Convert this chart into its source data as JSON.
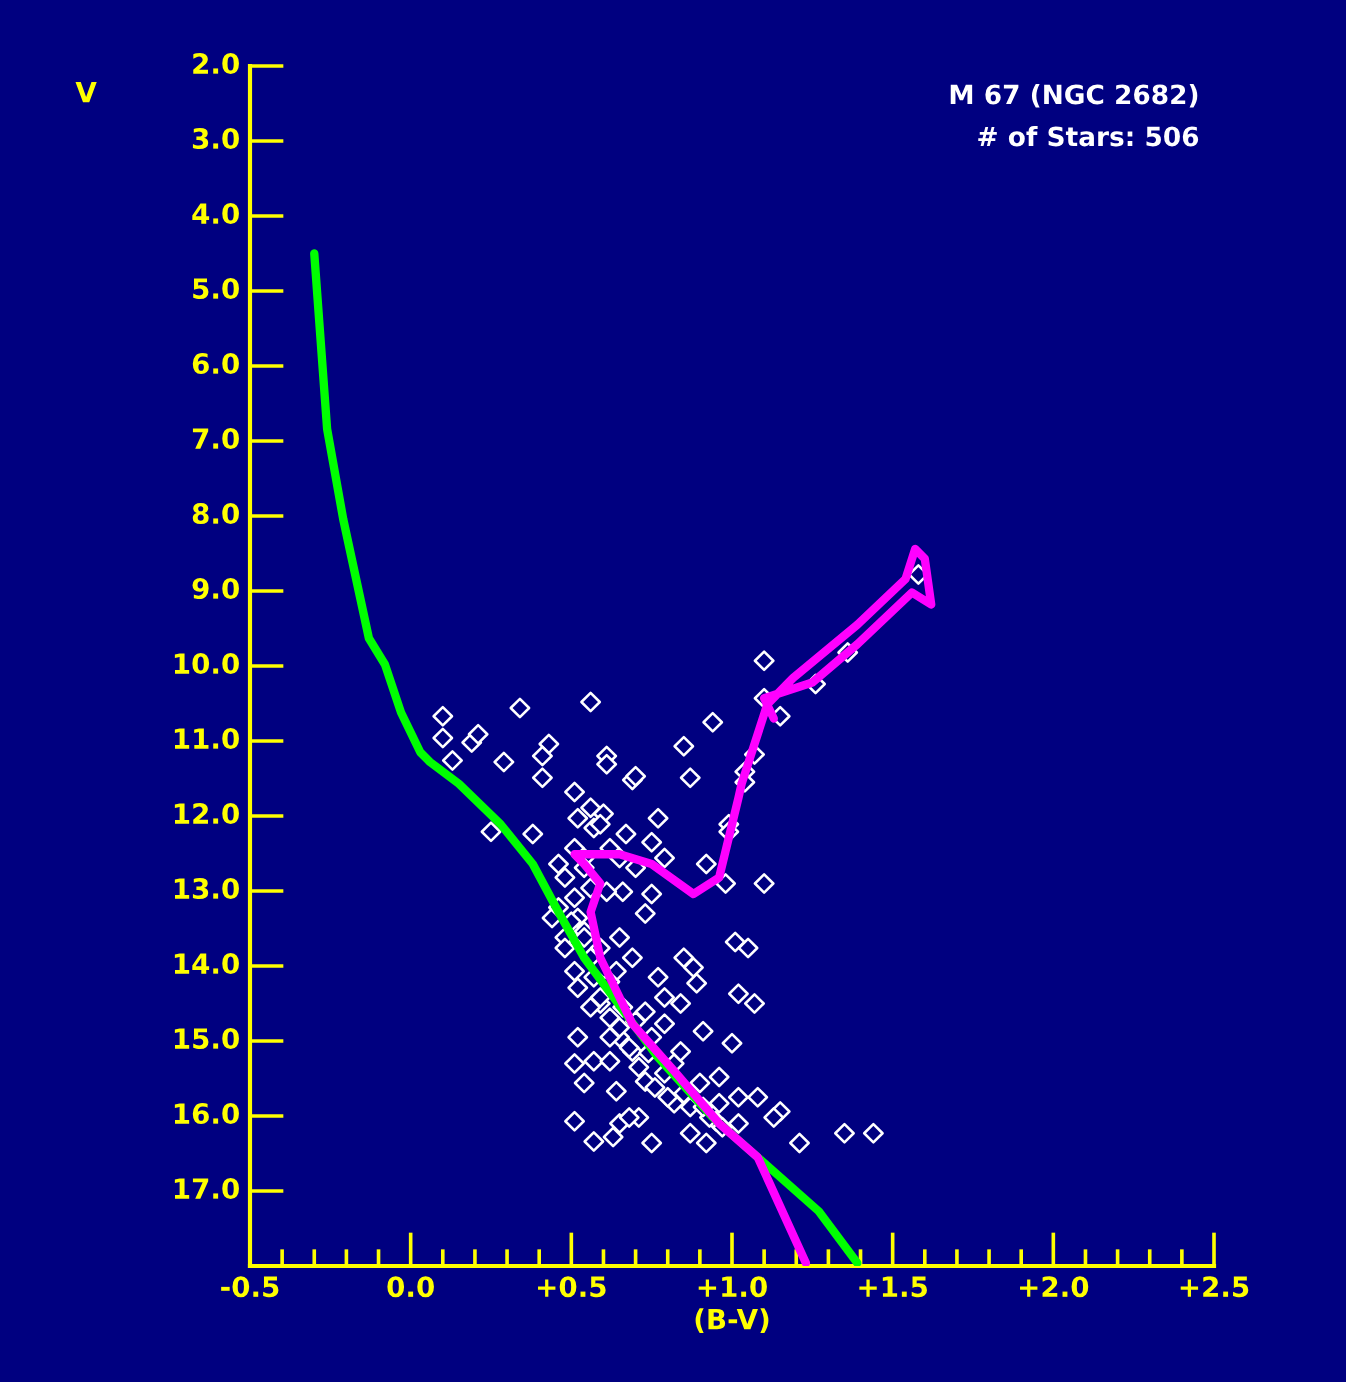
{
  "chart_data": {
    "type": "scatter",
    "xlabel": "(B-V)",
    "ylabel": "V",
    "annotations": [
      "M 67 (NGC 2682)",
      "# of Stars: 506"
    ],
    "xlim": [
      -0.5,
      2.5
    ],
    "ylim": [
      18.0,
      2.0
    ],
    "xticks": [
      {
        "value": -0.5,
        "label": "-0.5"
      },
      {
        "value": 0,
        "label": "0.0"
      },
      {
        "value": 0.5,
        "label": "+0.5"
      },
      {
        "value": 1.0,
        "label": "+1.0"
      },
      {
        "value": 1.5,
        "label": "+1.5"
      },
      {
        "value": 2.0,
        "label": "+2.0"
      },
      {
        "value": 2.5,
        "label": "+2.5"
      },
      {
        "value": -0.4,
        "label": null
      },
      {
        "value": -0.3,
        "label": null
      },
      {
        "value": -0.2,
        "label": null
      },
      {
        "value": -0.1,
        "label": null
      },
      {
        "value": 0.1,
        "label": null
      },
      {
        "value": 0.2,
        "label": null
      },
      {
        "value": 0.3,
        "label": null
      },
      {
        "value": 0.4,
        "label": null
      },
      {
        "value": 0.6,
        "label": null
      },
      {
        "value": 0.7,
        "label": null
      },
      {
        "value": 0.8,
        "label": null
      },
      {
        "value": 0.9,
        "label": null
      },
      {
        "value": 1.1,
        "label": null
      },
      {
        "value": 1.2,
        "label": null
      },
      {
        "value": 1.3,
        "label": null
      },
      {
        "value": 1.4,
        "label": null
      },
      {
        "value": 1.6,
        "label": null
      },
      {
        "value": 1.7,
        "label": null
      },
      {
        "value": 1.8,
        "label": null
      },
      {
        "value": 1.9,
        "label": null
      },
      {
        "value": 2.1,
        "label": null
      },
      {
        "value": 2.2,
        "label": null
      },
      {
        "value": 2.3,
        "label": null
      },
      {
        "value": 2.4,
        "label": null
      }
    ],
    "yticks": [
      {
        "value": 2,
        "label": "2.0"
      },
      {
        "value": 3,
        "label": "3.0"
      },
      {
        "value": 4,
        "label": "4.0"
      },
      {
        "value": 5,
        "label": "5.0"
      },
      {
        "value": 6,
        "label": "6.0"
      },
      {
        "value": 7,
        "label": "7.0"
      },
      {
        "value": 8,
        "label": "8.0"
      },
      {
        "value": 9,
        "label": "9.0"
      },
      {
        "value": 10,
        "label": "10.0"
      },
      {
        "value": 11,
        "label": "11.0"
      },
      {
        "value": 12,
        "label": "12.0"
      },
      {
        "value": 13,
        "label": "13.0"
      },
      {
        "value": 14,
        "label": "14.0"
      },
      {
        "value": 15,
        "label": "15.0"
      },
      {
        "value": 16,
        "label": "16.0"
      },
      {
        "value": 17,
        "label": "17.0"
      }
    ],
    "grid": false,
    "legend": false,
    "series": [
      {
        "color": "#ffffff",
        "marker": "diamond",
        "x": [
          0.1,
          0.34,
          0.56,
          0.1,
          0.19,
          0.21,
          0.13,
          0.29,
          0.43,
          0.41,
          0.41,
          0.51,
          0.61,
          0.61,
          0.69,
          0.7,
          0.85,
          0.87,
          0.25,
          0.38,
          0.6,
          0.77,
          0.57,
          0.67,
          0.75,
          0.79,
          0.66,
          0.73,
          0.75,
          1.1,
          0.94,
          1.1,
          1.15,
          1.07,
          1.04,
          1.04,
          0.99,
          0.99,
          0.92,
          0.98,
          1.1,
          1.26,
          1.36,
          1.58,
          0.46,
          0.48,
          0.44,
          0.48,
          1.01,
          1.05,
          0.85,
          0.88,
          0.89,
          1.02,
          1.07,
          0.51,
          0.52,
          0.59,
          0.77,
          0.84,
          0.91,
          0.51,
          0.57,
          0.62,
          0.54,
          0.64,
          0.51,
          0.57,
          0.65,
          0.71,
          0.75,
          0.82,
          0.9,
          0.96,
          1.08,
          1.15,
          1.21,
          1.35,
          1.44,
          0.69,
          0.75,
          0.79,
          0.82,
          0.59,
          0.54,
          0.61,
          0.54,
          0.65,
          0.69,
          0.64,
          0.73,
          0.79,
          0.52,
          0.65,
          0.84,
          0.96,
          1.0,
          0.73,
          0.68,
          0.63,
          0.95,
          1.02,
          1.13,
          0.92,
          0.87,
          1.02,
          0.51,
          0.52,
          0.54,
          0.56,
          0.57,
          0.59,
          0.62,
          0.65,
          0.68,
          0.71,
          0.76,
          0.8,
          0.87,
          0.93,
          0.54,
          0.56,
          0.5,
          0.59,
          0.62,
          0.66,
          0.7,
          0.74,
          0.79,
          0.85,
          0.91,
          0.97,
          0.46,
          0.48,
          0.56,
          0.62,
          0.52,
          0.56,
          0.62,
          0.51,
          0.65,
          0.7
        ],
        "values": [
          10.67,
          10.56,
          10.48,
          10.96,
          11.02,
          10.91,
          11.26,
          11.28,
          11.04,
          11.2,
          11.49,
          11.68,
          11.2,
          11.31,
          11.52,
          11.47,
          11.07,
          11.49,
          12.21,
          12.24,
          11.97,
          12.03,
          12.16,
          12.24,
          12.35,
          12.56,
          13.01,
          13.3,
          13.04,
          9.93,
          10.75,
          10.43,
          10.67,
          11.18,
          11.41,
          11.55,
          12.11,
          12.21,
          12.64,
          12.9,
          12.9,
          10.24,
          9.82,
          8.78,
          12.64,
          12.82,
          13.36,
          13.62,
          13.68,
          13.76,
          13.89,
          14.02,
          14.23,
          14.37,
          14.5,
          14.07,
          14.29,
          14.5,
          14.15,
          14.5,
          14.87,
          15.3,
          15.27,
          15.27,
          15.56,
          15.67,
          16.07,
          16.34,
          16.1,
          16.02,
          16.36,
          15.83,
          15.56,
          15.83,
          15.75,
          15.94,
          16.36,
          16.23,
          16.23,
          15.14,
          14.95,
          14.77,
          15.3,
          12.11,
          12.56,
          13.01,
          13.54,
          13.62,
          13.89,
          14.07,
          14.61,
          14.42,
          14.95,
          14.95,
          15.14,
          15.48,
          15.03,
          15.54,
          16.02,
          16.28,
          16.07,
          16.1,
          16.02,
          16.36,
          16.23,
          15.75,
          13.09,
          13.36,
          13.62,
          13.89,
          14.15,
          14.42,
          14.69,
          14.82,
          15.09,
          15.35,
          15.62,
          15.75,
          15.88,
          16.02,
          12.69,
          12.96,
          13.41,
          13.76,
          14.21,
          14.55,
          14.74,
          15.16,
          15.43,
          15.7,
          15.88,
          16.15,
          13.22,
          13.76,
          14.55,
          14.95,
          12.03,
          11.89,
          12.43,
          12.43,
          12.56,
          12.69
        ]
      },
      {
        "type": "line",
        "color": "#00ff00",
        "marker": "none",
        "line_style": "solid",
        "x": [
          -0.3,
          -0.26,
          -0.21,
          -0.13,
          -0.08,
          -0.03,
          0.03,
          0.06,
          0.15,
          0.28,
          0.38,
          0.46,
          0.54,
          0.77,
          0.94,
          1.08,
          1.27,
          1.39
        ],
        "values": [
          4.5,
          6.84,
          8.04,
          9.63,
          9.98,
          10.62,
          11.15,
          11.28,
          11.57,
          12.11,
          12.64,
          13.28,
          13.89,
          15.22,
          16.02,
          16.55,
          17.27,
          17.96
        ]
      },
      {
        "type": "line",
        "color": "#ff00ff",
        "marker": "none",
        "line_style": "solid",
        "x": [
          1.23,
          1.08,
          0.96,
          0.82,
          0.69,
          0.59,
          0.56,
          0.59,
          0.54,
          0.51,
          0.65,
          0.75,
          0.88,
          0.96,
          0.99,
          1.02,
          1.03,
          1.11,
          1.19,
          1.39,
          1.54,
          1.57,
          1.6,
          1.62,
          1.56,
          1.39,
          1.25,
          1.1,
          1.13
        ],
        "values": [
          17.96,
          16.55,
          16.1,
          15.4,
          14.77,
          13.89,
          13.28,
          12.9,
          12.64,
          12.51,
          12.51,
          12.64,
          13.04,
          12.82,
          12.29,
          11.76,
          11.57,
          10.51,
          10.16,
          9.45,
          8.84,
          8.44,
          8.57,
          9.18,
          9.02,
          9.71,
          10.22,
          10.43,
          10.7
        ]
      }
    ]
  }
}
